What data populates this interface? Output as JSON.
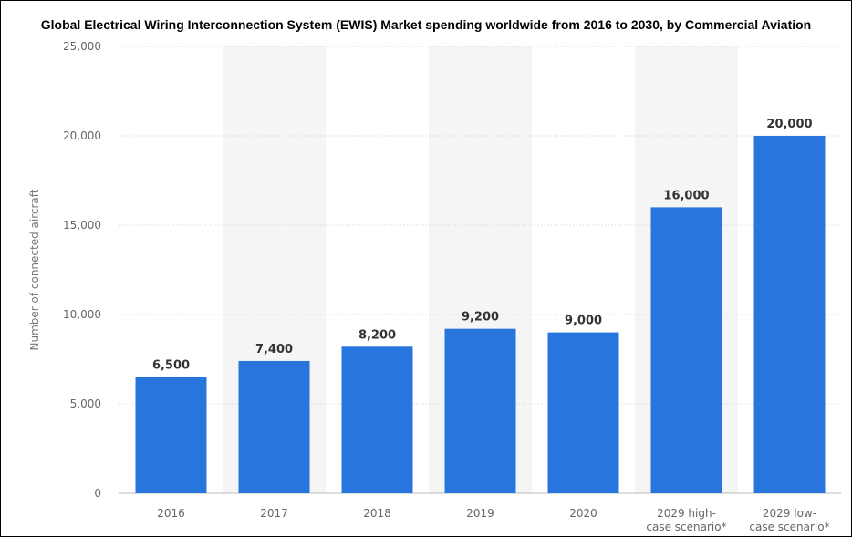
{
  "chart_data": {
    "type": "bar",
    "title": "Global Electrical Wiring Interconnection System (EWIS) Market spending worldwide from 2016 to 2030, by Commercial Aviation",
    "ylabel": "Number of connected aircraft",
    "xlabel": "",
    "categories": [
      [
        "2016"
      ],
      [
        "2017"
      ],
      [
        "2018"
      ],
      [
        "2019"
      ],
      [
        "2020"
      ],
      [
        "2029 high-",
        "case scenario*"
      ],
      [
        "2029 low-",
        "case scenario*"
      ]
    ],
    "values": [
      6500,
      7400,
      8200,
      9200,
      9000,
      16000,
      20000
    ],
    "data_labels": [
      "6,500",
      "7,400",
      "8,200",
      "9,200",
      "9,000",
      "16,000",
      "20,000"
    ],
    "ylim": [
      0,
      25000
    ],
    "yticks": [
      0,
      5000,
      10000,
      15000,
      20000,
      25000
    ],
    "ytick_labels": [
      "0",
      "5,000",
      "10,000",
      "15,000",
      "20,000",
      "25,000"
    ],
    "grid": true,
    "alternating_column_shading": true,
    "colors": {
      "bar": "#2876dd",
      "shade": "#f5f5f5",
      "grid": "#d9d9d9",
      "tick_text": "#666666",
      "value_text": "#333333"
    }
  }
}
